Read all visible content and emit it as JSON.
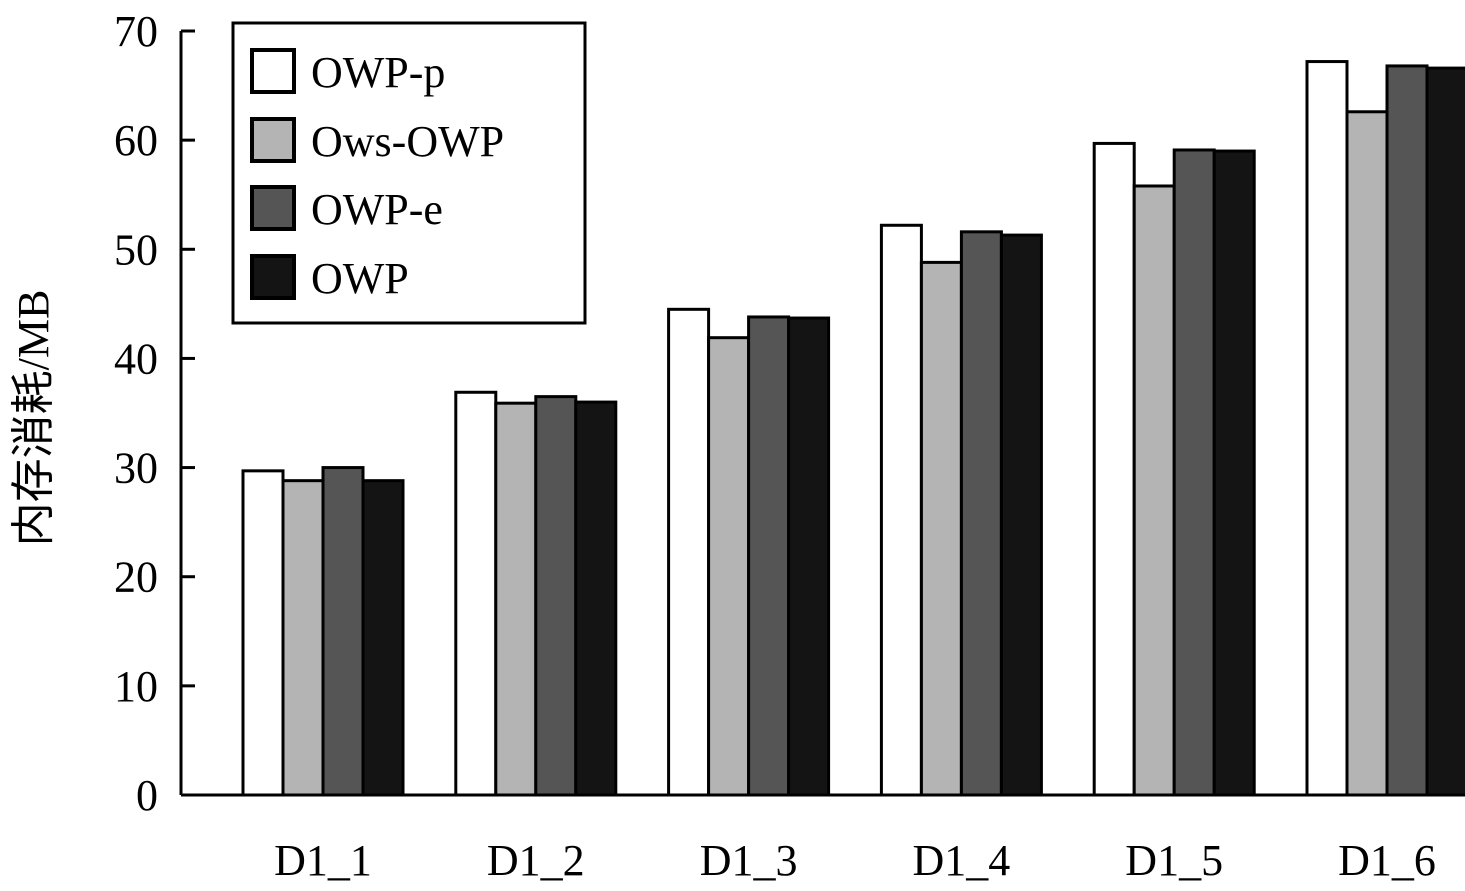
{
  "chart_data": {
    "type": "bar",
    "title": "",
    "xlabel": "",
    "ylabel": "内存消耗/MB",
    "ylim": [
      0,
      70
    ],
    "yticks": [
      0,
      10,
      20,
      30,
      40,
      50,
      60,
      70
    ],
    "grid": false,
    "legend_position": "top-left",
    "categories": [
      "D1_1",
      "D1_2",
      "D1_3",
      "D1_4",
      "D1_5",
      "D1_6"
    ],
    "series": [
      {
        "name": "OWP-p",
        "color": "#ffffff",
        "values": [
          29.7,
          36.9,
          44.5,
          52.2,
          59.7,
          67.2
        ]
      },
      {
        "name": "Ows-OWP",
        "color": "#b4b4b4",
        "values": [
          28.8,
          35.9,
          41.9,
          48.8,
          55.8,
          62.6
        ]
      },
      {
        "name": "OWP-e",
        "color": "#555555",
        "values": [
          30.0,
          36.5,
          43.8,
          51.6,
          59.1,
          66.8
        ]
      },
      {
        "name": "OWP",
        "color": "#141414",
        "values": [
          28.8,
          36.0,
          43.7,
          51.3,
          59.0,
          66.6
        ]
      }
    ]
  }
}
